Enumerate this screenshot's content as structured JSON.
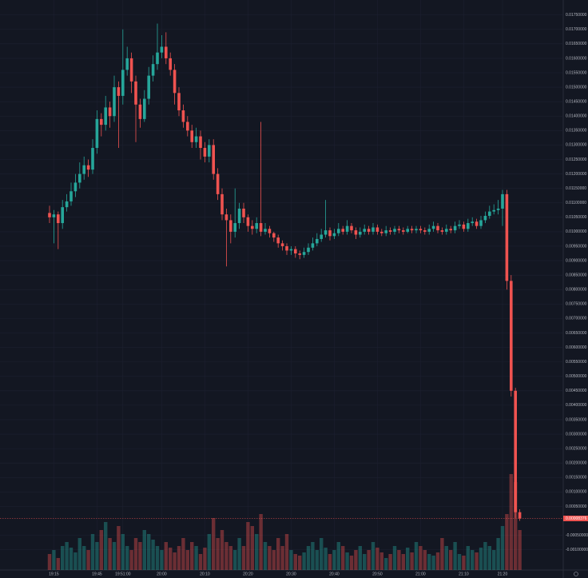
{
  "chart_data": {
    "type": "candlestick",
    "categories": [
      null,
      "19:15",
      null,
      null,
      null,
      null,
      null,
      null,
      null,
      null,
      null,
      "19:45",
      null,
      null,
      null,
      null,
      null,
      "19:51:00",
      null,
      null,
      null,
      null,
      null,
      null,
      null,
      null,
      "20:00",
      null,
      null,
      null,
      null,
      null,
      null,
      null,
      null,
      null,
      "20:10",
      null,
      null,
      null,
      null,
      null,
      null,
      null,
      null,
      null,
      "20:20",
      null,
      null,
      null,
      null,
      null,
      null,
      null,
      null,
      null,
      "20:30",
      null,
      null,
      null,
      null,
      null,
      null,
      null,
      null,
      null,
      "20:40",
      null,
      null,
      null,
      null,
      null,
      null,
      null,
      null,
      null,
      "20:50",
      null,
      null,
      null,
      null,
      null,
      null,
      null,
      null,
      null,
      "21:00",
      null,
      null,
      null,
      null,
      null,
      null,
      null,
      null,
      null,
      "21:10",
      null,
      null,
      null,
      null,
      null,
      null,
      null,
      null,
      "21:20",
      null,
      null,
      null,
      null
    ],
    "open": [
      0.01065,
      0.0105,
      0.0106,
      0.0103,
      0.01085,
      0.01105,
      0.0114,
      0.0117,
      0.012,
      0.0123,
      0.01215,
      0.0129,
      0.0139,
      0.0137,
      0.0143,
      0.014,
      0.015,
      0.0147,
      0.0156,
      0.016,
      0.0152,
      0.0144,
      0.0139,
      0.0146,
      0.0154,
      0.0158,
      0.0162,
      0.0164,
      0.016,
      0.0156,
      0.0148,
      0.0142,
      0.0138,
      0.0135,
      0.0131,
      0.0133,
      0.0129,
      0.0126,
      0.013,
      0.012,
      0.0113,
      0.0106,
      0.0104,
      0.01,
      0.0103,
      0.0108,
      0.0105,
      0.0102,
      0.0101,
      0.0103,
      0.01,
      0.0101,
      0.00995,
      0.0098,
      0.0096,
      0.0095,
      0.00935,
      0.0094,
      0.00925,
      0.0092,
      0.0093,
      0.00945,
      0.0096,
      0.00975,
      0.0099,
      0.01005,
      0.00985,
      0.00995,
      0.0101,
      0.01,
      0.0102,
      0.01005,
      0.0099,
      0.01,
      0.0101,
      0.01,
      0.01015,
      0.01,
      0.00995,
      0.01005,
      0.01,
      0.0101,
      0.01005,
      0.01,
      0.0101,
      0.01005,
      0.0101,
      0.01005,
      0.01,
      0.0101,
      0.0102,
      0.01005,
      0.01,
      0.0101,
      0.01005,
      0.0102,
      0.01025,
      0.0101,
      0.0103,
      0.01035,
      0.0102,
      0.0104,
      0.01055,
      0.0107,
      0.01075,
      0.0108,
      0.0113,
      0.0083,
      0.0045,
      0.0003
    ],
    "high": [
      0.0109,
      0.01075,
      0.0107,
      0.0111,
      0.0113,
      0.0117,
      0.012,
      0.0124,
      0.0126,
      0.0125,
      0.0132,
      0.0142,
      0.0141,
      0.0147,
      0.0145,
      0.0154,
      0.0152,
      0.017,
      0.0164,
      0.0162,
      0.0154,
      0.0146,
      0.0149,
      0.0157,
      0.0161,
      0.0172,
      0.0168,
      0.0169,
      0.0162,
      0.0158,
      0.015,
      0.0144,
      0.014,
      0.0137,
      0.0136,
      0.0135,
      0.0131,
      0.0132,
      0.0132,
      0.0122,
      0.0115,
      0.0108,
      0.0106,
      0.0115,
      0.011,
      0.011,
      0.0106,
      0.0104,
      0.0105,
      0.0138,
      0.0103,
      0.0102,
      0.01,
      0.0099,
      0.0097,
      0.0096,
      0.0095,
      0.0095,
      0.00935,
      0.00945,
      0.0096,
      0.0098,
      0.00995,
      0.0101,
      0.0111,
      0.01015,
      0.0101,
      0.0103,
      0.0102,
      0.0104,
      0.0103,
      0.01015,
      0.01015,
      0.01025,
      0.0102,
      0.0103,
      0.01025,
      0.0101,
      0.0102,
      0.01015,
      0.0102,
      0.0102,
      0.01015,
      0.0102,
      0.0102,
      0.0102,
      0.0102,
      0.01015,
      0.01025,
      0.01035,
      0.0103,
      0.01015,
      0.01025,
      0.0102,
      0.01035,
      0.0104,
      0.01035,
      0.01045,
      0.0105,
      0.01045,
      0.01055,
      0.0107,
      0.0109,
      0.01095,
      0.0111,
      0.01145,
      0.01145,
      0.0085,
      0.0046,
      0.0004
    ],
    "low": [
      0.0103,
      0.0096,
      0.0094,
      0.0101,
      0.0107,
      0.0109,
      0.0112,
      0.0115,
      0.0118,
      0.0119,
      0.012,
      0.0127,
      0.0133,
      0.0135,
      0.0136,
      0.0138,
      0.0129,
      0.0144,
      0.0154,
      0.0148,
      0.0131,
      0.0136,
      0.0138,
      0.0144,
      0.0152,
      0.0156,
      0.016,
      0.0158,
      0.0154,
      0.0144,
      0.014,
      0.0136,
      0.0133,
      0.0129,
      0.0129,
      0.0125,
      0.0124,
      0.0124,
      0.0118,
      0.0111,
      0.0104,
      0.0088,
      0.0096,
      0.0098,
      0.0101,
      0.0103,
      0.01,
      0.0099,
      0.00995,
      0.00985,
      0.0099,
      0.0098,
      0.00965,
      0.00945,
      0.00935,
      0.0092,
      0.0092,
      0.0091,
      0.00905,
      0.0091,
      0.0092,
      0.00935,
      0.0095,
      0.00965,
      0.0098,
      0.0097,
      0.00975,
      0.00985,
      0.0099,
      0.0099,
      0.00995,
      0.00975,
      0.0098,
      0.0099,
      0.0099,
      0.0099,
      0.0099,
      0.00985,
      0.00985,
      0.0099,
      0.0099,
      0.00995,
      0.0099,
      0.00995,
      0.00995,
      0.00995,
      0.00995,
      0.0099,
      0.0099,
      0.01,
      0.00995,
      0.0099,
      0.0099,
      0.00995,
      0.00995,
      0.0101,
      0.01,
      0.01,
      0.0102,
      0.0101,
      0.0101,
      0.0103,
      0.01045,
      0.0106,
      0.0106,
      0.0102,
      0.008,
      0.0043,
      0.0001,
      0
    ],
    "close": [
      0.0105,
      0.0106,
      0.0103,
      0.01085,
      0.01105,
      0.0114,
      0.0117,
      0.012,
      0.0123,
      0.01215,
      0.0129,
      0.0139,
      0.0137,
      0.0143,
      0.014,
      0.015,
      0.0147,
      0.0156,
      0.016,
      0.0152,
      0.0144,
      0.0139,
      0.0146,
      0.0154,
      0.0158,
      0.0162,
      0.0164,
      0.016,
      0.0156,
      0.0148,
      0.0142,
      0.0138,
      0.0135,
      0.0131,
      0.0133,
      0.0129,
      0.0126,
      0.013,
      0.012,
      0.0113,
      0.0106,
      0.0104,
      0.01,
      0.0103,
      0.0108,
      0.0105,
      0.0102,
      0.0101,
      0.0103,
      0.01,
      0.0101,
      0.00995,
      0.0098,
      0.0096,
      0.0095,
      0.00935,
      0.0094,
      0.00925,
      0.0092,
      0.0093,
      0.00945,
      0.0096,
      0.00975,
      0.0099,
      0.01005,
      0.00985,
      0.00995,
      0.0101,
      0.01,
      0.0102,
      0.01005,
      0.0099,
      0.01,
      0.0101,
      0.01,
      0.01015,
      0.01,
      0.00995,
      0.01005,
      0.01,
      0.0101,
      0.01005,
      0.01,
      0.0101,
      0.01005,
      0.0101,
      0.01005,
      0.01,
      0.0101,
      0.0102,
      0.01005,
      0.01,
      0.0101,
      0.01005,
      0.0102,
      0.01025,
      0.0101,
      0.0103,
      0.01035,
      0.0102,
      0.0104,
      0.01055,
      0.0107,
      0.01075,
      0.0108,
      0.0113,
      0.0083,
      0.0045,
      0.0003,
      8.376e-05
    ],
    "volume": [
      20,
      25,
      15,
      30,
      35,
      28,
      22,
      40,
      30,
      25,
      45,
      35,
      50,
      60,
      40,
      35,
      55,
      45,
      30,
      25,
      40,
      35,
      50,
      45,
      38,
      30,
      25,
      35,
      28,
      22,
      30,
      40,
      25,
      35,
      30,
      20,
      28,
      45,
      65,
      40,
      50,
      35,
      30,
      25,
      40,
      30,
      60,
      55,
      45,
      70,
      35,
      30,
      25,
      40,
      30,
      45,
      25,
      20,
      18,
      22,
      30,
      35,
      25,
      40,
      28,
      20,
      25,
      35,
      30,
      22,
      18,
      25,
      30,
      20,
      25,
      35,
      28,
      22,
      15,
      20,
      30,
      25,
      20,
      28,
      22,
      35,
      30,
      25,
      20,
      18,
      22,
      40,
      30,
      25,
      35,
      20,
      18,
      30,
      25,
      22,
      28,
      35,
      30,
      25,
      40,
      55,
      70,
      120,
      110,
      50
    ],
    "up_color": "#26a69a",
    "down_color": "#ef5350",
    "ylim": [
      -0.0017,
      0.018
    ],
    "yticks": [
      {
        "value": 0.0175,
        "label": "0.01750000"
      },
      {
        "value": 0.017,
        "label": "0.01700000"
      },
      {
        "value": 0.0165,
        "label": "0.01650000"
      },
      {
        "value": 0.016,
        "label": "0.01600000"
      },
      {
        "value": 0.0155,
        "label": "0.01550000"
      },
      {
        "value": 0.015,
        "label": "0.01500000"
      },
      {
        "value": 0.0145,
        "label": "0.01450000"
      },
      {
        "value": 0.014,
        "label": "0.01400000"
      },
      {
        "value": 0.0135,
        "label": "0.01350000"
      },
      {
        "value": 0.013,
        "label": "0.01300000"
      },
      {
        "value": 0.0125,
        "label": "0.01250000"
      },
      {
        "value": 0.012,
        "label": "0.01200000"
      },
      {
        "value": 0.0115,
        "label": "0.01150000"
      },
      {
        "value": 0.011,
        "label": "0.01100000"
      },
      {
        "value": 0.0105,
        "label": "0.01050000"
      },
      {
        "value": 0.01,
        "label": "0.01000000"
      },
      {
        "value": 0.0095,
        "label": "0.00950000"
      },
      {
        "value": 0.009,
        "label": "0.00900000"
      },
      {
        "value": 0.0085,
        "label": "0.00850000"
      },
      {
        "value": 0.008,
        "label": "0.00800000"
      },
      {
        "value": 0.0075,
        "label": "0.00750000"
      },
      {
        "value": 0.007,
        "label": "0.00700000"
      },
      {
        "value": 0.0065,
        "label": "0.00650000"
      },
      {
        "value": 0.006,
        "label": "0.00600000"
      },
      {
        "value": 0.0055,
        "label": "0.00550000"
      },
      {
        "value": 0.005,
        "label": "0.00500000"
      },
      {
        "value": 0.0045,
        "label": "0.00450000"
      },
      {
        "value": 0.004,
        "label": "0.00400000"
      },
      {
        "value": 0.0035,
        "label": "0.00350000"
      },
      {
        "value": 0.003,
        "label": "0.00300000"
      },
      {
        "value": 0.0025,
        "label": "0.00250000"
      },
      {
        "value": 0.002,
        "label": "0.00200000"
      },
      {
        "value": 0.0015,
        "label": "0.00150000"
      },
      {
        "value": 0.001,
        "label": "0.00100000"
      },
      {
        "value": 0.0005,
        "label": "0.00050000"
      },
      {
        "value": -0.0005,
        "label": "-0.00050000"
      },
      {
        "value": -0.001,
        "label": "-0.00100000"
      }
    ],
    "grid": true
  }
}
